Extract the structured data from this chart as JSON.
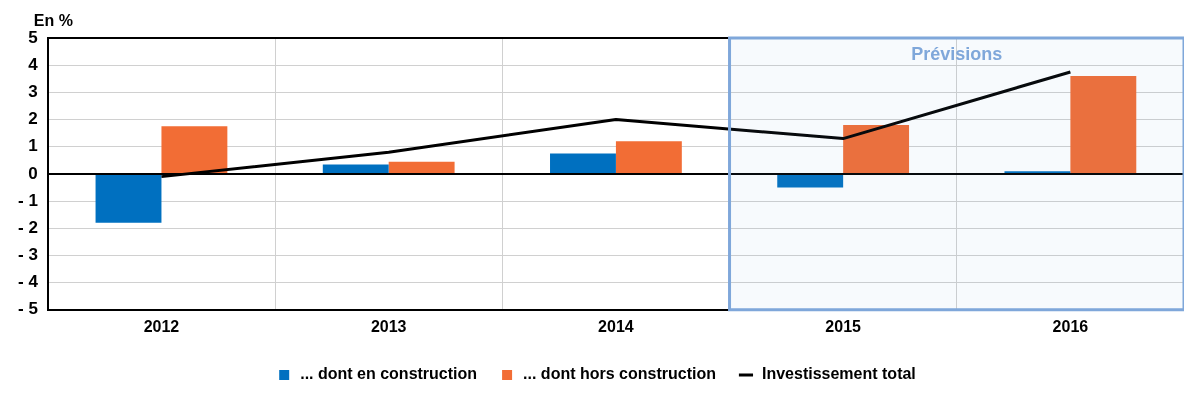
{
  "chart_data": {
    "type": "bar",
    "ylabel": "En %",
    "categories": [
      "2012",
      "2013",
      "2014",
      "2015",
      "2016"
    ],
    "series": [
      {
        "name": "... dont en construction",
        "color": "#0070c0",
        "values": [
          -1.8,
          0.35,
          0.75,
          -0.5,
          0.1
        ]
      },
      {
        "name": "... dont hors construction",
        "color": "#f26d35",
        "values": [
          1.75,
          0.45,
          1.2,
          1.8,
          3.6
        ]
      },
      {
        "name": "Investissement total",
        "type": "line",
        "color": "#000000",
        "values": [
          -0.1,
          0.8,
          2.0,
          1.3,
          3.75
        ]
      }
    ],
    "ylim": [
      -5,
      5
    ],
    "yticks": [
      {
        "value": -5,
        "label": "- 5"
      },
      {
        "value": -4,
        "label": "- 4"
      },
      {
        "value": -3,
        "label": "- 3"
      },
      {
        "value": -2,
        "label": "- 2"
      },
      {
        "value": -1,
        "label": "- 1"
      },
      0,
      1,
      2,
      3,
      4,
      5
    ],
    "bands": [
      {
        "axis": "x",
        "from": "2015",
        "to": "2016",
        "label": "Prévisions",
        "color": "#7fa7da"
      }
    ],
    "grid": true,
    "legend": "bottom",
    "marker": "none",
    "line_style": "solid"
  }
}
